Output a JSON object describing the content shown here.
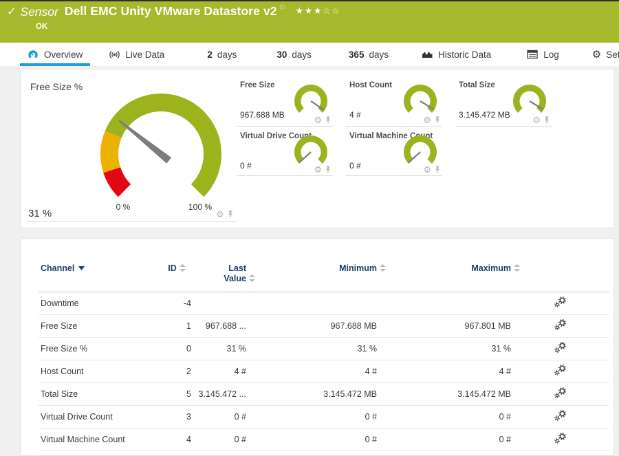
{
  "colors": {
    "header_green": "#a6b92d",
    "gauge_green": "#9cb31e",
    "gauge_yellow": "#edb200",
    "gauge_red": "#e30613",
    "needle_gray": "#7d7d7d",
    "tab_active_blue": "#1e9cd8",
    "table_header_navy": "#1f3f68",
    "icon_gray": "#b5b5b5"
  },
  "icons": {
    "check": "✓",
    "flag": "⚐",
    "star_filled": "★",
    "star_empty": "☆",
    "gear": "⚙"
  },
  "header": {
    "kind_label": "Sensor",
    "title": "Dell EMC Unity VMware Datastore v2",
    "status": "OK",
    "rating_filled": 3,
    "rating_empty": 2
  },
  "tabs": [
    {
      "icon": "gauge-icon",
      "label": "Overview",
      "active": true
    },
    {
      "icon": "live-icon",
      "label": "Live Data"
    },
    {
      "prefix": "2",
      "label": "days"
    },
    {
      "prefix": "30",
      "label": "days"
    },
    {
      "prefix": "365",
      "label": "days"
    },
    {
      "icon": "chart-icon",
      "label": "Historic Data"
    },
    {
      "icon": "log-icon",
      "label": "Log"
    },
    {
      "icon": "gear-icon",
      "label": "Settings"
    }
  ],
  "panel_gauges": {
    "main": {
      "title": "Free Size %",
      "value_label": "31 %",
      "value_percent": 31,
      "scale_min_label": "0 %",
      "scale_max_label": "100 %",
      "segments": [
        {
          "from": 0,
          "to": 10,
          "color": "#e30613"
        },
        {
          "from": 10,
          "to": 25,
          "color": "#edb200"
        },
        {
          "from": 25,
          "to": 100,
          "color": "#9cb31e"
        }
      ]
    },
    "mini": [
      {
        "title": "Free Size",
        "value_label": "967.688 MB",
        "needle_percent": 96
      },
      {
        "title": "Host Count",
        "value_label": "4 #",
        "needle_percent": 95
      },
      {
        "title": "Total Size",
        "value_label": "3.145.472 MB",
        "needle_percent": 95
      },
      {
        "title": "Virtual Drive Count",
        "value_label": "0 #",
        "needle_percent": 1
      },
      {
        "title": "Virtual Machine Count",
        "value_label": "0 #",
        "needle_percent": 1
      }
    ]
  },
  "chart_data": [
    {
      "type": "gauge",
      "title": "Free Size %",
      "value": 31,
      "min": 0,
      "max": 100,
      "unit": "%"
    },
    {
      "type": "gauge",
      "title": "Free Size",
      "value_label": "967.688 MB"
    },
    {
      "type": "gauge",
      "title": "Host Count",
      "value_label": "4 #"
    },
    {
      "type": "gauge",
      "title": "Total Size",
      "value_label": "3.145.472 MB"
    },
    {
      "type": "gauge",
      "title": "Virtual Drive Count",
      "value_label": "0 #"
    },
    {
      "type": "gauge",
      "title": "Virtual Machine Count",
      "value_label": "0 #"
    }
  ],
  "channel_table": {
    "columns": [
      {
        "label": "Channel",
        "sort": "desc"
      },
      {
        "label": "ID",
        "sort": "both"
      },
      {
        "label": "Last Value",
        "line1": "Last",
        "line2": "Value",
        "sort": "both"
      },
      {
        "label": "Minimum",
        "sort": "both"
      },
      {
        "label": "Maximum",
        "sort": "both"
      }
    ],
    "rows": [
      {
        "channel": "Downtime",
        "id": "-4",
        "last": "",
        "min": "",
        "max": ""
      },
      {
        "channel": "Free Size",
        "id": "1",
        "last": "967.688 ...",
        "min": "967.688 MB",
        "max": "967.801 MB"
      },
      {
        "channel": "Free Size %",
        "id": "0",
        "last": "31 %",
        "min": "31 %",
        "max": "31 %"
      },
      {
        "channel": "Host Count",
        "id": "2",
        "last": "4 #",
        "min": "4 #",
        "max": "4 #"
      },
      {
        "channel": "Total Size",
        "id": "5",
        "last": "3.145.472 ...",
        "min": "3.145.472 MB",
        "max": "3.145.472 MB"
      },
      {
        "channel": "Virtual Drive Count",
        "id": "3",
        "last": "0 #",
        "min": "0 #",
        "max": "0 #"
      },
      {
        "channel": "Virtual Machine Count",
        "id": "4",
        "last": "0 #",
        "min": "0 #",
        "max": "0 #"
      }
    ]
  }
}
